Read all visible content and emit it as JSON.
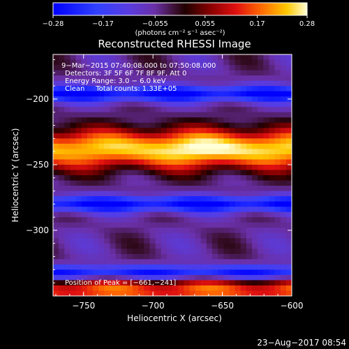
{
  "chart_data": {
    "type": "heatmap",
    "title": "Reconstructed RHESSI Image",
    "xlabel": "Heliocentric X (arcsec)",
    "ylabel": "Heliocentric Y (arcsec)",
    "xlim": [
      -772,
      -600
    ],
    "ylim": [
      -350,
      -166
    ],
    "xticks": [
      -750,
      -700,
      -650,
      -600
    ],
    "yticks": [
      -200,
      -250,
      -300
    ],
    "x_tick_labels": [
      "−750",
      "−700",
      "−650",
      "−600"
    ],
    "y_tick_labels": [
      "−200",
      "−250",
      "−300"
    ],
    "colorbar": {
      "range": [
        -0.28,
        0.28
      ],
      "ticks": [
        -0.28,
        -0.17,
        -0.055,
        0.055,
        0.17,
        0.28
      ],
      "tick_labels": [
        "−0.28",
        "−0.17",
        "−0.055",
        "0.055",
        "0.17",
        "0.28"
      ],
      "units": "(photons cm⁻² s⁻¹ asec⁻²)",
      "colormap": "hot-blue"
    },
    "annotations": [
      "9−Mar−2015 07:40:08.000 to 07:50:08.000",
      "Detectors: 3F 5F 6F 7F 8F 9F, Att 0",
      "Energy Range: 3.0 − 6.0 keV",
      "Clean     Total counts: 1.33E+05"
    ],
    "peak_label": "Position of Peak = [−661,−241]",
    "peak": {
      "x": -661,
      "y": -241
    },
    "emission_bands": [
      {
        "center_y": -238,
        "width": 30,
        "peak_value": 0.28
      },
      {
        "center_y": -346,
        "width": 18,
        "peak_value": 0.16
      }
    ],
    "background_value": -0.05
  },
  "footer": {
    "timestamp": "23−Aug−2017 08:54"
  },
  "colors": {
    "background": "#000000",
    "text": "#ffffff"
  }
}
